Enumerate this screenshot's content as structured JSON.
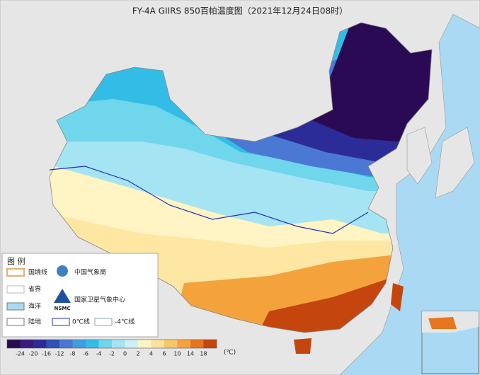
{
  "title": "FY-4A GIIRS 850百帕温度图（2021年12月24日08时）",
  "legend": {
    "heading": "图  例",
    "items": [
      "国境线",
      "省界",
      "海洋",
      "陆地"
    ],
    "agencies": [
      "中国气象局",
      "国家卫星气象中心"
    ],
    "logo": "NSMC",
    "contours": [
      "0℃线",
      "-4℃线"
    ]
  },
  "colorbar": {
    "labels": [
      -24,
      -20,
      -16,
      -12,
      -8,
      -6,
      -4,
      -2,
      0,
      2,
      4,
      6,
      10,
      14,
      18
    ],
    "colors": [
      "#2a0a55",
      "#3a1a7a",
      "#2c2c98",
      "#2f52b8",
      "#4a78d2",
      "#3f9ee0",
      "#33bde6",
      "#6fd6ec",
      "#a5e4f2",
      "#cdeff6",
      "#fff4c4",
      "#fde39a",
      "#f8c66a",
      "#f3a23c",
      "#e5761e",
      "#c4460e"
    ],
    "unit": "(℃)"
  }
}
